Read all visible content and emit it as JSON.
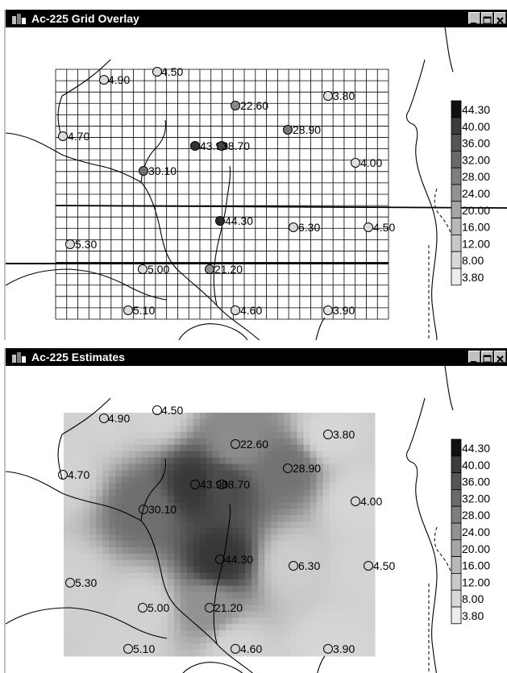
{
  "windows": [
    {
      "title": "Ac-225 Grid Overlay"
    },
    {
      "title": "Ac-225 Estimates"
    }
  ],
  "colors": {
    "titlebar": "#000000",
    "title_text": "#ffffff",
    "grid": "#000000",
    "estimate_background": "#d4d4d4",
    "estimate_peak": "#3a3a3a"
  },
  "legend": {
    "labels": [
      "44.30",
      "40.00",
      "36.00",
      "32.00",
      "28.00",
      "24.00",
      "20.00",
      "16.00",
      "12.00",
      "8.00",
      "3.80"
    ],
    "colors": [
      "#111111",
      "#3c3c3c",
      "#555555",
      "#6a6a6a",
      "#7e7e7e",
      "#929292",
      "#a6a6a6",
      "#b8b8b8",
      "#c8c8c8",
      "#d8d8d8",
      "#ececec"
    ]
  },
  "samples": [
    {
      "label": "4.90",
      "value": 4.9,
      "color": "#dcdcdc"
    },
    {
      "label": "4.50",
      "value": 4.5,
      "color": "#dcdcdc"
    },
    {
      "label": "22.60",
      "value": 22.6,
      "color": "#8a8a8a"
    },
    {
      "label": "3.80",
      "value": 3.8,
      "color": "#e4e4e4"
    },
    {
      "label": "4.70",
      "value": 4.7,
      "color": "#dcdcdc"
    },
    {
      "label": "28.90",
      "value": 28.9,
      "color": "#777777"
    },
    {
      "label": "43.90",
      "value": 43.9,
      "color": "#333333"
    },
    {
      "label": "38.70",
      "value": 38.7,
      "color": "#444444"
    },
    {
      "label": "4.00",
      "value": 4.0,
      "color": "#e0e0e0"
    },
    {
      "label": "30.10",
      "value": 30.1,
      "color": "#707070"
    },
    {
      "label": "44.30",
      "value": 44.3,
      "color": "#2a2a2a"
    },
    {
      "label": "6.30",
      "value": 6.3,
      "color": "#d8d8d8"
    },
    {
      "label": "4.50",
      "value": 4.5,
      "color": "#dcdcdc"
    },
    {
      "label": "5.30",
      "value": 5.3,
      "color": "#dcdcdc"
    },
    {
      "label": "5.00",
      "value": 5.0,
      "color": "#dcdcdc"
    },
    {
      "label": "21.20",
      "value": 21.2,
      "color": "#909090"
    },
    {
      "label": "5.10",
      "value": 5.1,
      "color": "#dcdcdc"
    },
    {
      "label": "4.60",
      "value": 4.6,
      "color": "#dcdcdc"
    },
    {
      "label": "3.90",
      "value": 3.9,
      "color": "#e4e4e4"
    }
  ]
}
